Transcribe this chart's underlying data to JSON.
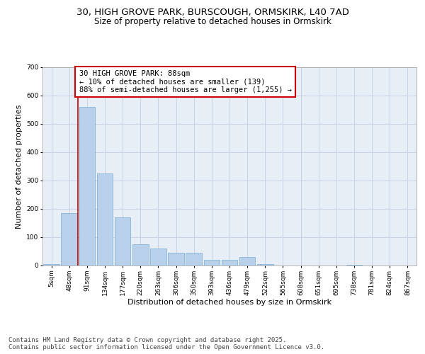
{
  "title1": "30, HIGH GROVE PARK, BURSCOUGH, ORMSKIRK, L40 7AD",
  "title2": "Size of property relative to detached houses in Ormskirk",
  "xlabel": "Distribution of detached houses by size in Ormskirk",
  "ylabel": "Number of detached properties",
  "bar_labels": [
    "5sqm",
    "48sqm",
    "91sqm",
    "134sqm",
    "177sqm",
    "220sqm",
    "263sqm",
    "306sqm",
    "350sqm",
    "393sqm",
    "436sqm",
    "479sqm",
    "522sqm",
    "565sqm",
    "608sqm",
    "651sqm",
    "695sqm",
    "738sqm",
    "781sqm",
    "824sqm",
    "867sqm"
  ],
  "bar_values": [
    5,
    185,
    560,
    325,
    170,
    75,
    60,
    45,
    45,
    20,
    20,
    30,
    5,
    0,
    0,
    0,
    0,
    2,
    0,
    0,
    0
  ],
  "bar_color": "#b8d0ea",
  "bar_edge_color": "#7aadd4",
  "grid_color": "#c8d4e4",
  "background_color": "#e8eef6",
  "annotation_text": "30 HIGH GROVE PARK: 88sqm\n← 10% of detached houses are smaller (139)\n88% of semi-detached houses are larger (1,255) →",
  "vline_color": "#cc0000",
  "annotation_box_color": "#ffffff",
  "annotation_box_edge": "#cc0000",
  "ylim": [
    0,
    700
  ],
  "yticks": [
    0,
    100,
    200,
    300,
    400,
    500,
    600,
    700
  ],
  "footer_text": "Contains HM Land Registry data © Crown copyright and database right 2025.\nContains public sector information licensed under the Open Government Licence v3.0.",
  "title_fontsize": 9.5,
  "subtitle_fontsize": 8.5,
  "axis_label_fontsize": 8,
  "tick_fontsize": 6.5,
  "annotation_fontsize": 7.5,
  "footer_fontsize": 6.5
}
